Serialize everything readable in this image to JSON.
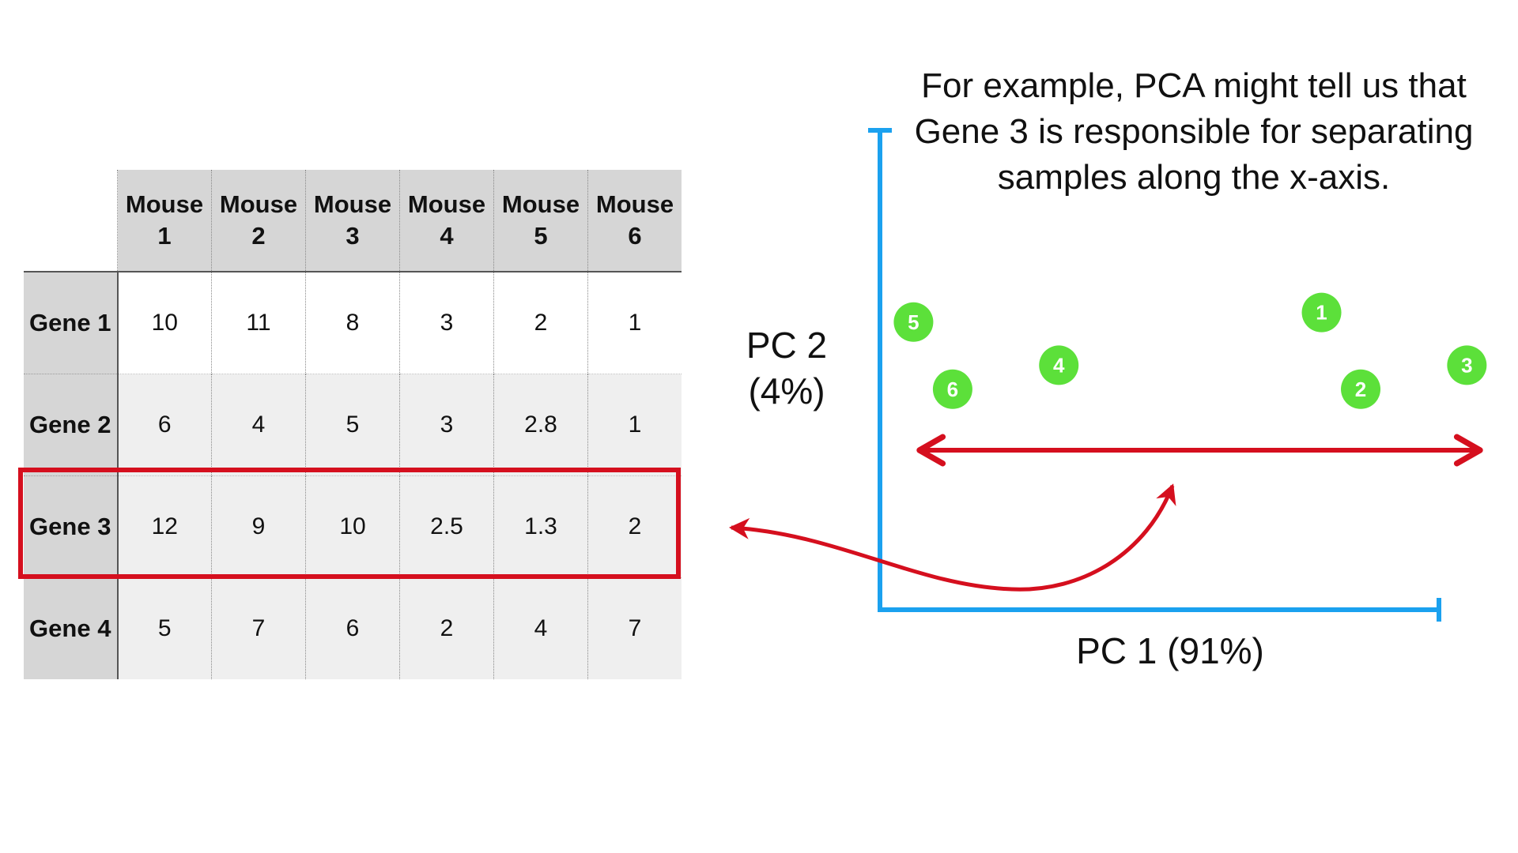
{
  "table": {
    "column_headers": [
      {
        "line1": "Mouse",
        "line2": "1"
      },
      {
        "line1": "Mouse",
        "line2": "2"
      },
      {
        "line1": "Mouse",
        "line2": "3"
      },
      {
        "line1": "Mouse",
        "line2": "4"
      },
      {
        "line1": "Mouse",
        "line2": "5"
      },
      {
        "line1": "Mouse",
        "line2": "6"
      }
    ],
    "rows": [
      {
        "label": "Gene 1",
        "values": [
          "10",
          "11",
          "8",
          "3",
          "2",
          "1"
        ]
      },
      {
        "label": "Gene 2",
        "values": [
          "6",
          "4",
          "5",
          "3",
          "2.8",
          "1"
        ]
      },
      {
        "label": "Gene 3",
        "values": [
          "12",
          "9",
          "10",
          "2.5",
          "1.3",
          "2"
        ]
      },
      {
        "label": "Gene 4",
        "values": [
          "5",
          "7",
          "6",
          "2",
          "4",
          "7"
        ]
      }
    ],
    "highlighted_row": "Gene 3"
  },
  "caption": "For example, PCA might tell us that Gene 3 is responsible for separating samples along the x-axis.",
  "plot": {
    "y_axis_label_line1": "PC 2",
    "y_axis_label_line2": "(4%)",
    "x_axis_label": "PC 1 (91%)"
  },
  "colors": {
    "axis": "#1ba1ef",
    "arrow": "#d50f1e",
    "point": "#5ce03a",
    "header_bg": "#d6d6d6"
  },
  "chart_data": {
    "type": "scatter",
    "title": "",
    "xlabel": "PC 1 (91%)",
    "ylabel": "PC 2 (4%)",
    "xlim": [
      0,
      100
    ],
    "ylim": [
      0,
      100
    ],
    "points": [
      {
        "label": "1",
        "x": 79,
        "y": 62
      },
      {
        "label": "2",
        "x": 86,
        "y": 46
      },
      {
        "label": "3",
        "x": 105,
        "y": 51
      },
      {
        "label": "4",
        "x": 32,
        "y": 51
      },
      {
        "label": "5",
        "x": 6,
        "y": 60
      },
      {
        "label": "6",
        "x": 13,
        "y": 46
      }
    ]
  }
}
